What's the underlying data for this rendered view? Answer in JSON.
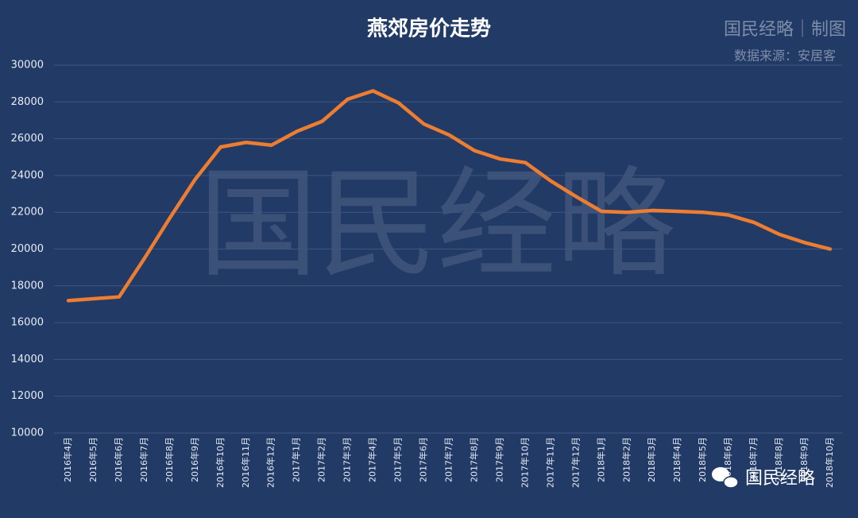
{
  "chart_data": {
    "type": "line",
    "title": "燕郊房价走势",
    "credit": "国民经略｜制图",
    "source": "数据来源：安居客",
    "watermark": "国民经略",
    "logo_text": "国民经略",
    "categories": [
      "2016年4月",
      "2016年5月",
      "2016年6月",
      "2016年7月",
      "2016年8月",
      "2016年9月",
      "2016年10月",
      "2016年11月",
      "2016年12月",
      "2017年1月",
      "2017年2月",
      "2017年3月",
      "2017年4月",
      "2017年5月",
      "2017年6月",
      "2017年7月",
      "2017年8月",
      "2017年9月",
      "2017年10月",
      "2017年11月",
      "2017年12月",
      "2018年1月",
      "2018年2月",
      "2018年3月",
      "2018年4月",
      "2018年5月",
      "2018年6月",
      "2018年7月",
      "2018年8月",
      "2018年9月",
      "2018年10月"
    ],
    "values": [
      17200,
      17300,
      17400,
      19500,
      21700,
      23800,
      25550,
      25800,
      25650,
      26400,
      26950,
      28150,
      28600,
      27950,
      26800,
      26200,
      25350,
      24900,
      24700,
      23700,
      22850,
      22050,
      22000,
      22100,
      22050,
      22000,
      21850,
      21450,
      20800,
      20350,
      20000
    ],
    "color": "#ed7d31",
    "ylim": [
      10000,
      30000
    ],
    "yticks": [
      10000,
      12000,
      14000,
      16000,
      18000,
      20000,
      22000,
      24000,
      26000,
      28000,
      30000
    ],
    "grid": true
  }
}
